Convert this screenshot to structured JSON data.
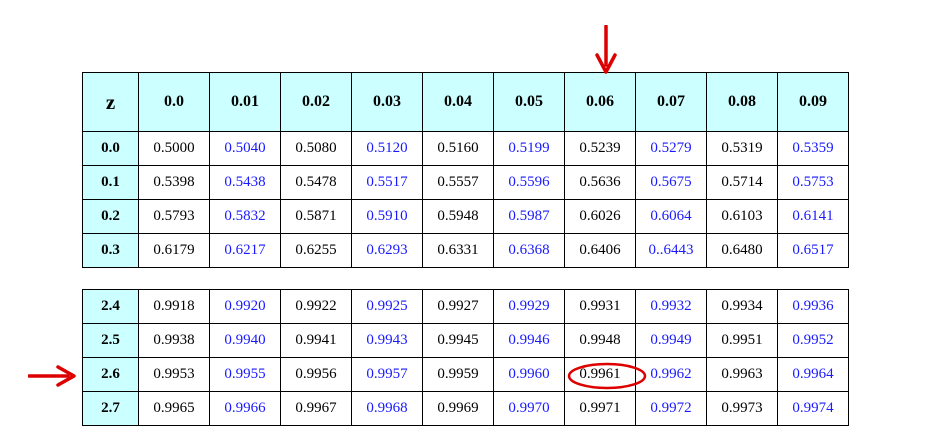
{
  "header": {
    "z_label": "z",
    "columns": [
      "0.0",
      "0.01",
      "0.02",
      "0.03",
      "0.04",
      "0.05",
      "0.06",
      "0.07",
      "0.08",
      "0.09"
    ]
  },
  "top_rows": [
    {
      "z": "0.0",
      "values": [
        "0.5000",
        "0.5040",
        "0.5080",
        "0.5120",
        "0.5160",
        "0.5199",
        "0.5239",
        "0.5279",
        "0.5319",
        "0.5359"
      ]
    },
    {
      "z": "0.1",
      "values": [
        "0.5398",
        "0.5438",
        "0.5478",
        "0.5517",
        "0.5557",
        "0.5596",
        "0.5636",
        "0.5675",
        "0.5714",
        "0.5753"
      ]
    },
    {
      "z": "0.2",
      "values": [
        "0.5793",
        "0.5832",
        "0.5871",
        "0.5910",
        "0.5948",
        "0.5987",
        "0.6026",
        "0.6064",
        "0.6103",
        "0.6141"
      ]
    },
    {
      "z": "0.3",
      "values": [
        "0.6179",
        "0.6217",
        "0.6255",
        "0.6293",
        "0.6331",
        "0.6368",
        "0.6406",
        "0..6443",
        "0.6480",
        "0.6517"
      ]
    }
  ],
  "bottom_rows": [
    {
      "z": "2.4",
      "values": [
        "0.9918",
        "0.9920",
        "0.9922",
        "0.9925",
        "0.9927",
        "0.9929",
        "0.9931",
        "0.9932",
        "0.9934",
        "0.9936"
      ]
    },
    {
      "z": "2.5",
      "values": [
        "0.9938",
        "0.9940",
        "0.9941",
        "0.9943",
        "0.9945",
        "0.9946",
        "0.9948",
        "0.9949",
        "0.9951",
        "0.9952"
      ]
    },
    {
      "z": "2.6",
      "values": [
        "0.9953",
        "0.9955",
        "0.9956",
        "0.9957",
        "0.9959",
        "0.9960",
        "0.9961",
        "0.9962",
        "0.9963",
        "0.9964"
      ]
    },
    {
      "z": "2.7",
      "values": [
        "0.9965",
        "0.9966",
        "0.9967",
        "0.9968",
        "0.9969",
        "0.9970",
        "0.9971",
        "0.9972",
        "0.9973",
        "0.9974"
      ]
    }
  ],
  "highlight": {
    "row_z": "2.6",
    "column": "0.06",
    "value": "0.9961"
  },
  "colors": {
    "header_bg": "#ccffff",
    "odd_column_text": "#1a1aff",
    "even_column_text": "#000000",
    "annotation": "#dd0000"
  },
  "icons": {
    "down_arrow": "arrow-down-icon",
    "right_arrow": "arrow-right-icon",
    "circle": "highlight-circle-icon"
  }
}
